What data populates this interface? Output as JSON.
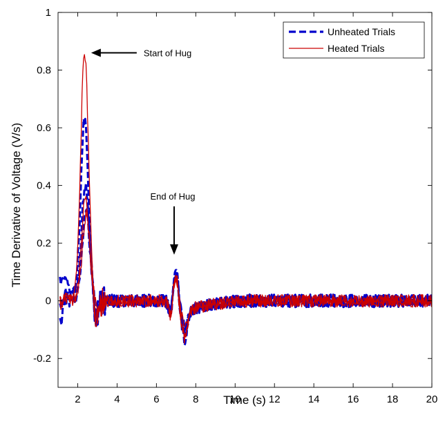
{
  "chart_data": {
    "type": "line",
    "title": "",
    "xlabel": "Time (s)",
    "ylabel": "Time Derivative of Voltage (V/s)",
    "xlim": [
      1,
      20
    ],
    "ylim": [
      -0.3,
      1.0
    ],
    "xticks": [
      2,
      4,
      6,
      8,
      10,
      12,
      14,
      16,
      18,
      20
    ],
    "yticks": [
      -0.2,
      0,
      0.2,
      0.4,
      0.6,
      0.8,
      1
    ],
    "ytick_labels": [
      "-0.2",
      "0",
      "0.2",
      "0.4",
      "0.6",
      "0.8",
      "1"
    ],
    "xtick_labels": [
      "2",
      "4",
      "6",
      "8",
      "10",
      "12",
      "14",
      "16",
      "18",
      "20"
    ],
    "grid": false,
    "legend_position": "top-right",
    "legend": [
      {
        "label": "Unheated Trials",
        "color": "#0000cc",
        "style": "dashed"
      },
      {
        "label": "Heated Trials",
        "color": "#cc0000",
        "style": "solid"
      }
    ],
    "annotations": [
      {
        "text": "Start of Hug",
        "x": 2.4,
        "y": 0.86,
        "arrow": "left"
      },
      {
        "text": "End of Hug",
        "x": 6.9,
        "y": 0.16,
        "arrow": "down"
      }
    ],
    "series": [
      {
        "group": "Unheated Trials",
        "color": "#0000cc",
        "dashed": true,
        "peak1": 0.63,
        "base": 0.05,
        "peak2": 0.12,
        "trough": -0.14
      },
      {
        "group": "Unheated Trials",
        "color": "#0000cc",
        "dashed": true,
        "peak1": 0.4,
        "base": 0.1,
        "peak2": 0.11,
        "trough": -0.1
      },
      {
        "group": "Unheated Trials",
        "color": "#0000cc",
        "dashed": true,
        "peak1": 0.3,
        "base": 0.0,
        "peak2": 0.13,
        "trough": -0.08
      },
      {
        "group": "Heated Trials",
        "color": "#cc0000",
        "dashed": false,
        "peak1": 0.86,
        "base": 0.02,
        "peak2": 0.1,
        "trough": -0.07
      },
      {
        "group": "Heated Trials",
        "color": "#cc0000",
        "dashed": false,
        "peak1": 0.35,
        "base": 0.0,
        "peak2": 0.09,
        "trough": -0.05
      },
      {
        "group": "Heated Trials",
        "color": "#cc0000",
        "dashed": false,
        "peak1": 0.3,
        "base": 0.01,
        "peak2": 0.11,
        "trough": -0.06
      }
    ]
  }
}
